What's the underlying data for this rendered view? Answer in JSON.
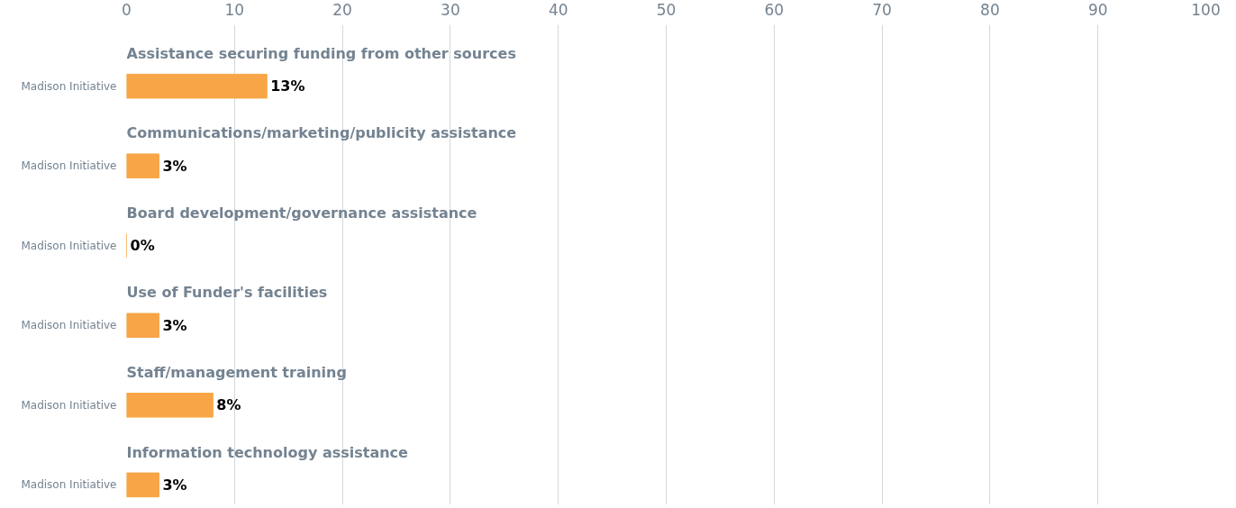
{
  "chart_data": {
    "type": "bar",
    "orientation": "horizontal",
    "categories": [
      "Assistance securing funding from other sources",
      "Communications/marketing/publicity assistance",
      "Board development/governance assistance",
      "Use of Funder's facilities",
      "Staff/management training",
      "Information technology assistance"
    ],
    "series": [
      {
        "name": "Madison Initiative",
        "color": "#f7a547",
        "values": [
          13,
          3,
          0,
          3,
          8,
          3
        ],
        "value_labels": [
          "13%",
          "3%",
          "0%",
          "3%",
          "8%",
          "3%"
        ]
      }
    ],
    "xlim": [
      0,
      100
    ],
    "xticks": [
      0,
      10,
      20,
      30,
      40,
      50,
      60,
      70,
      80,
      90,
      100
    ],
    "grid": "x"
  }
}
